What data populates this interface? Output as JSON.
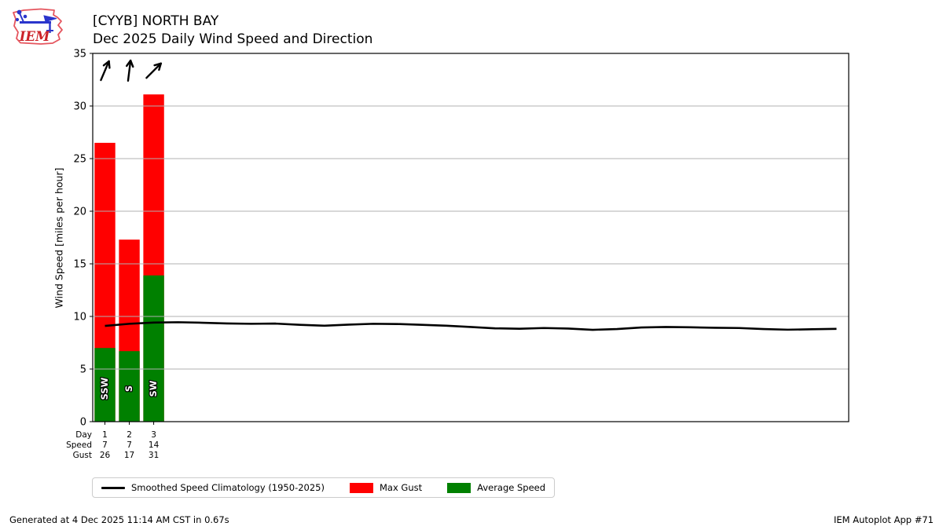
{
  "header": {
    "title_line1": "[CYYB] NORTH BAY",
    "title_line2": "Dec 2025 Daily Wind Speed and Direction",
    "logo_text": "IEM"
  },
  "legend": {
    "items": [
      {
        "label": "Smoothed Speed Climatology (1950-2025)",
        "type": "line",
        "color": "#000000"
      },
      {
        "label": "Max Gust",
        "type": "rect",
        "color": "#ff0000"
      },
      {
        "label": "Average Speed",
        "type": "rect",
        "color": "#008000"
      }
    ]
  },
  "footer": {
    "generated": "Generated at 4 Dec 2025 11:14 AM CST in 0.67s",
    "credit": "IEM Autoplot App #71"
  },
  "chart_data": {
    "type": "bar",
    "title": "Dec 2025 Daily Wind Speed and Direction",
    "station": "[CYYB] NORTH BAY",
    "xlabel": "Day",
    "ylabel": "Wind Speed [miles per hour]",
    "ylim": [
      0,
      35
    ],
    "ytick_step": 5,
    "xlim": [
      0.5,
      31.5
    ],
    "grid": "horizontal",
    "grid_color": "#b0b0b0",
    "row_labels": [
      "Day",
      "Speed",
      "Gust"
    ],
    "days": [
      1,
      2,
      3
    ],
    "bar_width_days": 0.85,
    "series": [
      {
        "name": "Max Gust",
        "color": "#ff0000",
        "values": [
          26.5,
          17.3,
          31.1
        ],
        "display": [
          "26",
          "17",
          "31"
        ]
      },
      {
        "name": "Average Speed",
        "color": "#008000",
        "values": [
          7.0,
          6.7,
          13.9
        ],
        "display": [
          "7",
          "7",
          "14"
        ]
      }
    ],
    "wind_directions": [
      "SSW",
      "S",
      "SW"
    ],
    "arrow_angles_from_north_deg": [
      23,
      7,
      45
    ],
    "climatology": {
      "name": "Smoothed Speed Climatology (1950-2025)",
      "color": "#000000",
      "x": [
        1,
        2,
        3,
        4,
        5,
        6,
        7,
        8,
        9,
        10,
        11,
        12,
        13,
        14,
        15,
        16,
        17,
        18,
        19,
        20,
        21,
        22,
        23,
        24,
        25,
        26,
        27,
        28,
        29,
        30,
        31
      ],
      "y": [
        9.1,
        9.3,
        9.42,
        9.45,
        9.4,
        9.33,
        9.3,
        9.32,
        9.2,
        9.12,
        9.22,
        9.3,
        9.28,
        9.2,
        9.12,
        9.0,
        8.87,
        8.83,
        8.9,
        8.85,
        8.73,
        8.8,
        8.95,
        9.0,
        8.97,
        8.92,
        8.9,
        8.8,
        8.74,
        8.78,
        8.82
      ]
    },
    "legend_position": "bottom"
  }
}
